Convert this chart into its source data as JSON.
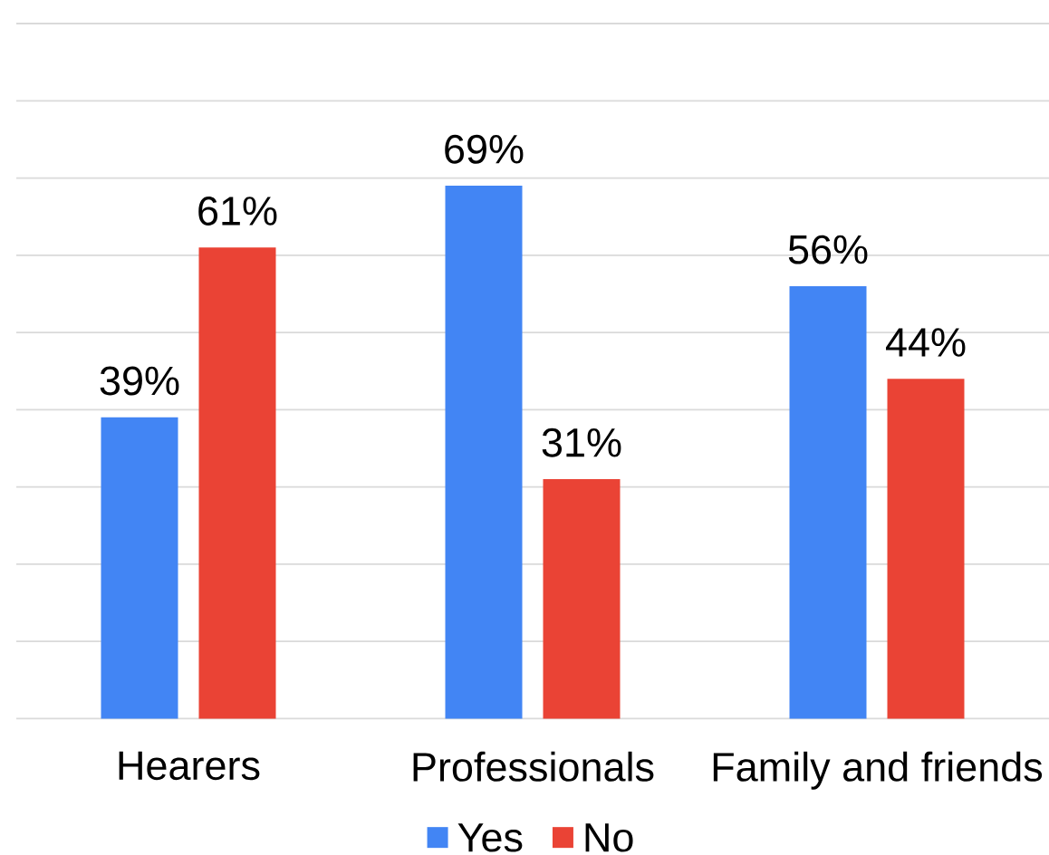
{
  "chart_data": {
    "type": "bar",
    "categories": [
      "Hearers",
      "Professionals",
      "Family and friends"
    ],
    "series": [
      {
        "name": "Yes",
        "color": "#4285f4",
        "values": [
          39,
          69,
          56
        ],
        "value_labels": [
          "39%",
          "69%",
          "56%"
        ]
      },
      {
        "name": "No",
        "color": "#ea4335",
        "values": [
          61,
          31,
          44
        ],
        "value_labels": [
          "61%",
          "31%",
          "44%"
        ]
      }
    ],
    "ylim": [
      0,
      90
    ],
    "yticks": [
      {
        "value": 0,
        "label": null
      },
      {
        "value": 10,
        "label": null
      },
      {
        "value": 20,
        "label": null
      },
      {
        "value": 30,
        "label": null
      },
      {
        "value": 40,
        "label": null
      },
      {
        "value": 50,
        "label": null
      },
      {
        "value": 60,
        "label": null
      },
      {
        "value": 70,
        "label": null
      },
      {
        "value": 80,
        "label": null
      },
      {
        "value": 90,
        "label": null
      }
    ],
    "grid": "y",
    "legend": "bottom",
    "tick_labels": "x"
  }
}
